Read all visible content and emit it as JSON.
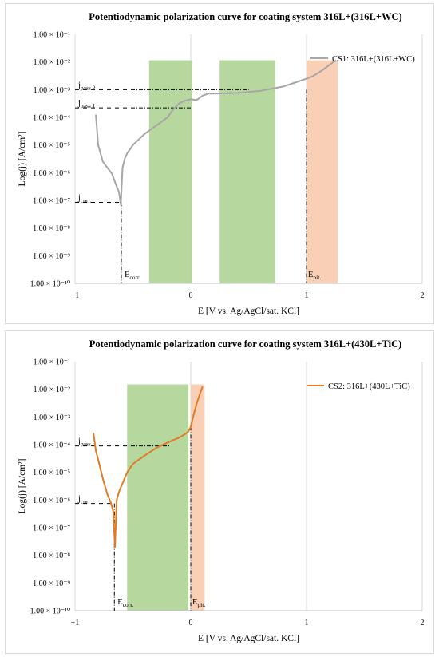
{
  "chart_data": [
    {
      "type": "line",
      "title": "Potentiodynamic polarization curve for coating system 316L+(316L+WC)",
      "xlabel": "E [V vs. Ag/AgCl/sat. KCl]",
      "ylabel": "Log(j) [A/cm²]",
      "xlim": [
        -1,
        2
      ],
      "ylim": [
        1e-10,
        0.1
      ],
      "y_scale": "log",
      "x_ticks": [
        "−1",
        "0",
        "1",
        "2"
      ],
      "y_ticks": [
        "1.00 × 10⁻¹⁰",
        "1.00 × 10⁻⁹",
        "1.00 × 10⁻⁸",
        "1.00 × 10⁻⁷",
        "1.00 × 10⁻⁶",
        "1.00 × 10⁻⁵",
        "1.00 × 10⁻⁴",
        "1.00 × 10⁻³",
        "1.00 × 10⁻²",
        "1.00 × 10⁻¹"
      ],
      "grid": "vertical",
      "legend": "top-right",
      "color": "#a6a6a6",
      "series": [
        {
          "name": "CS1: 316L+(316L+WC)",
          "cathodic": {
            "x": [
              -0.82,
              -0.8,
              -0.76,
              -0.72,
              -0.68,
              -0.65,
              -0.62,
              -0.605
            ],
            "y": [
              0.00012,
              1e-05,
              2.5e-06,
              1.5e-06,
              9e-07,
              4e-07,
              2e-07,
              7e-08
            ]
          },
          "anodic": {
            "x": [
              -0.605,
              -0.59,
              -0.57,
              -0.55,
              -0.5,
              -0.4,
              -0.3,
              -0.2,
              -0.15,
              -0.1,
              -0.05,
              0.0,
              0.05,
              0.1,
              0.15,
              0.2,
              0.4,
              0.6,
              0.8,
              0.9,
              1.0,
              1.05,
              1.1,
              1.15,
              1.2,
              1.25
            ],
            "y": [
              7e-08,
              1.5e-06,
              3.2e-06,
              5e-06,
              1e-05,
              2.5e-05,
              5e-05,
              0.0001,
              0.0002,
              0.00032,
              0.0004,
              0.00045,
              0.00042,
              0.0006,
              0.00072,
              0.00072,
              0.00076,
              0.0009,
              0.0013,
              0.0018,
              0.0025,
              0.003,
              0.004,
              0.0055,
              0.008,
              0.011
            ]
          }
        }
      ],
      "bands": [
        {
          "kind": "passive",
          "from": -0.36,
          "to": 0.01,
          "top": 0.0115
        },
        {
          "kind": "passive",
          "from": 0.25,
          "to": 0.73,
          "top": 0.0115
        },
        {
          "kind": "pitting",
          "from": 1.0,
          "to": 1.27,
          "top": 0.0115
        }
      ],
      "annotations": {
        "jpass2": {
          "base": "j",
          "sub": "pass 2",
          "y": 0.001,
          "x_end": 0.5
        },
        "jpass1": {
          "base": "j",
          "sub": "pass 1",
          "y": 0.00022,
          "x_end": 0.0
        },
        "jcorr": {
          "base": "j",
          "sub": "corr.",
          "y": 8.5e-08,
          "x_end": -0.6
        },
        "ecorr": {
          "base": "E",
          "sub": "corr.",
          "x": -0.6
        },
        "epit": {
          "base": "E",
          "sub": "pit.",
          "x": 1.0,
          "y_top": 0.001
        }
      }
    },
    {
      "type": "line",
      "title": "Potentiodynamic polarization curve for coating system 316L+(430L+TiC)",
      "xlabel": "E [V vs. Ag/AgCl/sat. KCl]",
      "ylabel": "Log(j) [A/cm²]",
      "xlim": [
        -1,
        2
      ],
      "ylim": [
        1e-10,
        0.1
      ],
      "y_scale": "log",
      "x_ticks": [
        "−1",
        "0",
        "1",
        "2"
      ],
      "y_ticks": [
        "1.00 × 10⁻¹⁰",
        "1.00 × 10⁻⁹",
        "1.00 × 10⁻⁸",
        "1.00 × 10⁻⁷",
        "1.00 × 10⁻⁶",
        "1.00 × 10⁻⁵",
        "1.00 × 10⁻⁴",
        "1.00 × 10⁻³",
        "1.00 × 10⁻²",
        "1.00 × 10⁻¹"
      ],
      "grid": "vertical",
      "legend": "top-right",
      "color": "#e07b26",
      "series": [
        {
          "name": "CS2: 316L+(430L+TiC)",
          "cathodic": {
            "x": [
              -0.84,
              -0.82,
              -0.79,
              -0.76,
              -0.72,
              -0.69,
              -0.67,
              -0.655
            ],
            "y": [
              0.00025,
              6e-05,
              2e-05,
              6e-06,
              1.6e-06,
              8e-07,
              4e-07,
              2e-08
            ]
          },
          "anodic": {
            "x": [
              -0.655,
              -0.64,
              -0.62,
              -0.59,
              -0.55,
              -0.5,
              -0.4,
              -0.3,
              -0.2,
              -0.1,
              -0.05,
              -0.02,
              0.0,
              0.02,
              0.05,
              0.08,
              0.1
            ],
            "y": [
              2e-08,
              1e-06,
              2e-06,
              4e-06,
              1e-05,
              2e-05,
              4e-05,
              7.5e-05,
              0.00012,
              0.00018,
              0.00024,
              0.0003,
              0.00045,
              0.001,
              0.003,
              0.007,
              0.012
            ]
          }
        }
      ],
      "bands": [
        {
          "kind": "passive",
          "from": -0.55,
          "to": -0.02,
          "top": 0.015
        },
        {
          "kind": "pitting",
          "from": 0.0,
          "to": 0.12,
          "top": 0.015
        }
      ],
      "annotations": {
        "jpass": {
          "base": "j",
          "sub": "pass",
          "y": 9e-05,
          "x_end": -0.18
        },
        "jcorr": {
          "base": "j",
          "sub": "corr",
          "y": 7.5e-07,
          "x_end": -0.66
        },
        "ecorr": {
          "base": "E",
          "sub": "corr.",
          "x": -0.66
        },
        "epit": {
          "base": "E",
          "sub": "pit.",
          "x": 0.0,
          "y_top": 0.00045
        }
      }
    }
  ]
}
